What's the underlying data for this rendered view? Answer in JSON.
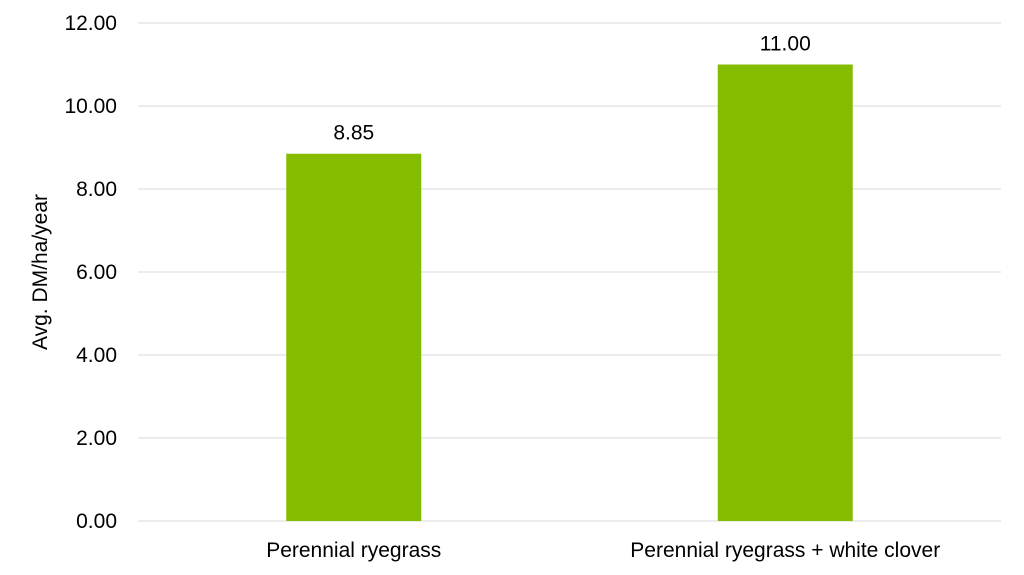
{
  "chart_data": {
    "type": "bar",
    "categories": [
      "Perennial ryegrass",
      "Perennial ryegrass + white clover"
    ],
    "values": [
      8.85,
      11.0
    ],
    "data_labels": [
      "8.85",
      "11.00"
    ],
    "xlabel": "",
    "ylabel": "Avg. DM/ha/year",
    "ylim": [
      0,
      12
    ],
    "yticks": [
      0,
      2,
      4,
      6,
      8,
      10,
      12
    ],
    "ytick_labels": [
      "0.00",
      "2.00",
      "4.00",
      "6.00",
      "8.00",
      "10.00",
      "12.00"
    ],
    "grid": true,
    "legend": "none",
    "colors": {
      "bar": "#84BD00",
      "grid": "#D9D9D9"
    }
  }
}
